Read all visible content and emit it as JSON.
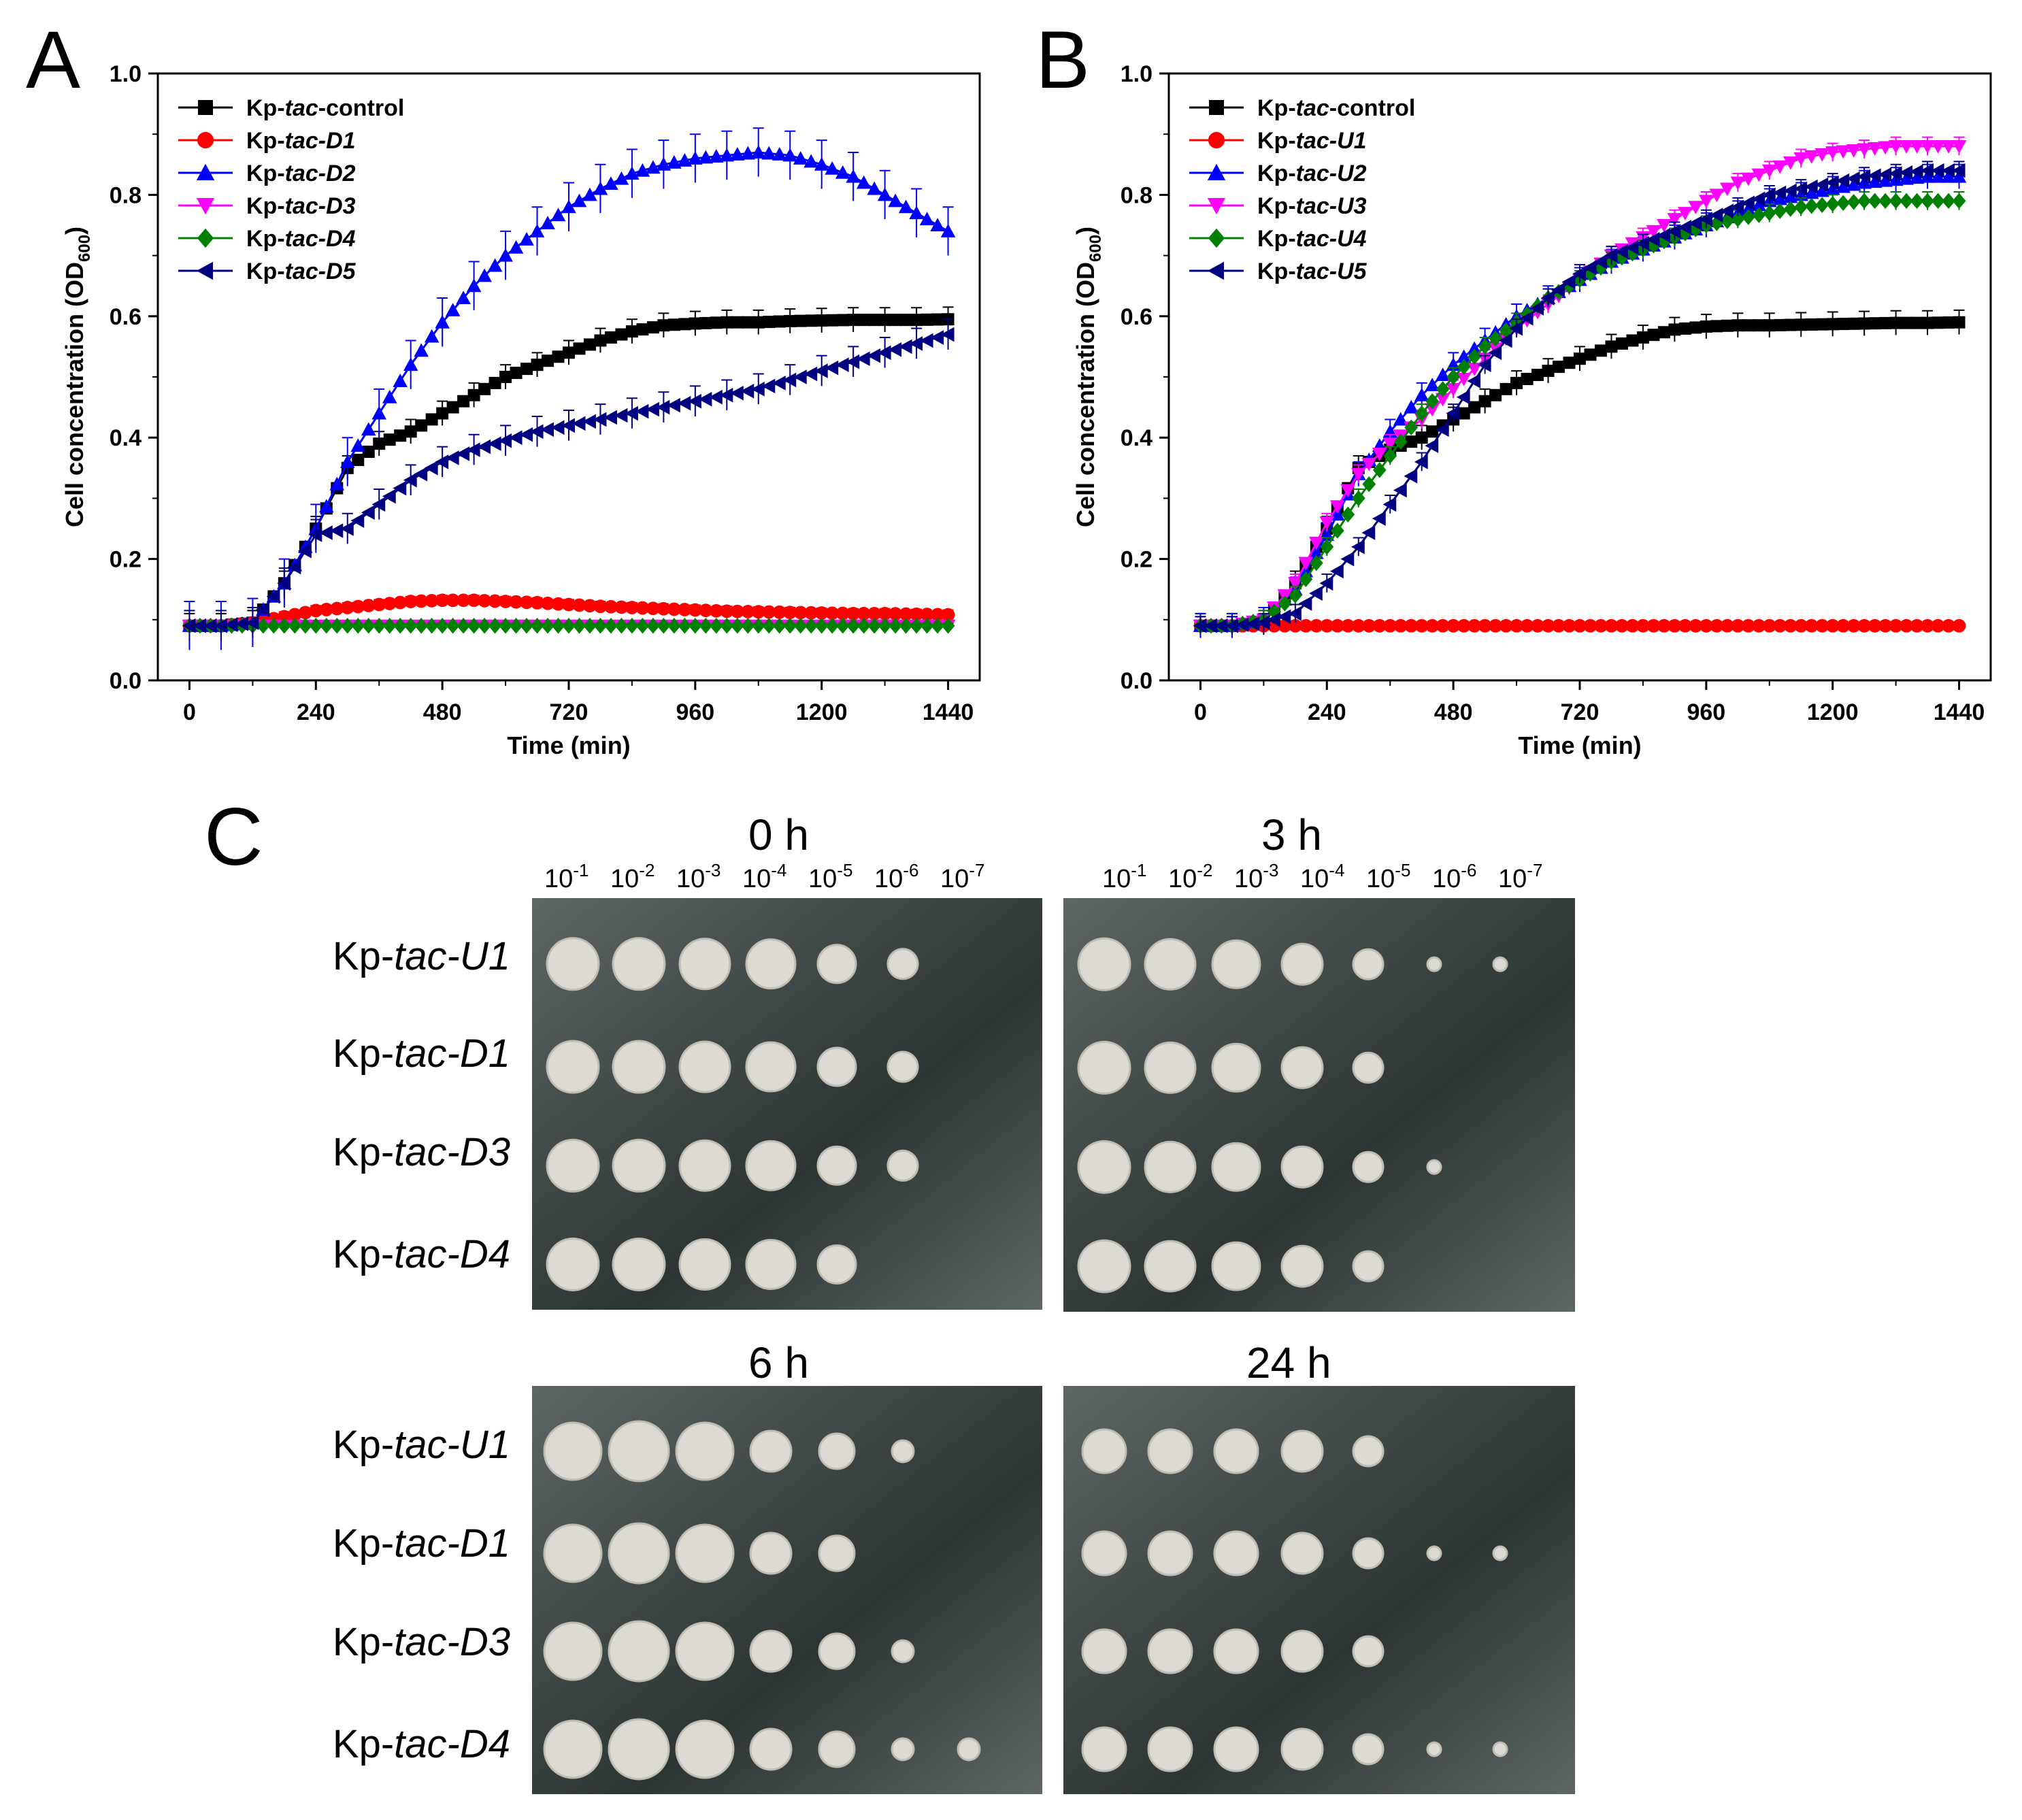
{
  "panels": {
    "a": "A",
    "b": "B",
    "c": "C"
  },
  "chart_data": [
    {
      "type": "line",
      "panel": "A",
      "xlabel": "Time (min)",
      "ylabel": "Cell concentration (OD600)",
      "ylabel_main": "Cell concentration (OD",
      "ylabel_sub": "600",
      "ylabel_close": ")",
      "xlim": [
        -60,
        1500
      ],
      "ylim": [
        0.0,
        1.0
      ],
      "xticks": [
        "0",
        "240",
        "480",
        "720",
        "960",
        "1200",
        "1440"
      ],
      "yticks": [
        "0.0",
        "0.2",
        "0.4",
        "0.6",
        "0.8",
        "1.0"
      ],
      "x": [
        0,
        60,
        120,
        180,
        240,
        300,
        360,
        420,
        480,
        540,
        600,
        660,
        720,
        780,
        840,
        900,
        960,
        1020,
        1080,
        1140,
        1200,
        1260,
        1320,
        1380,
        1440
      ],
      "series": [
        {
          "name": "Kp-tac-control",
          "prefix": "Kp-",
          "italic": "tac",
          "suffix": "-control",
          "color": "#000000",
          "marker": "square",
          "values": [
            0.09,
            0.09,
            0.095,
            0.16,
            0.25,
            0.35,
            0.39,
            0.41,
            0.44,
            0.47,
            0.5,
            0.52,
            0.54,
            0.56,
            0.575,
            0.585,
            0.588,
            0.59,
            0.59,
            0.592,
            0.593,
            0.594,
            0.594,
            0.594,
            0.595
          ],
          "error": 0.02
        },
        {
          "name": "Kp-tac-D1",
          "prefix": "Kp-",
          "italic": "tac",
          "suffix": "-D1",
          "color": "#ff0000",
          "marker": "circle",
          "values": [
            0.09,
            0.09,
            0.095,
            0.105,
            0.115,
            0.12,
            0.125,
            0.13,
            0.132,
            0.132,
            0.13,
            0.128,
            0.125,
            0.122,
            0.12,
            0.118,
            0.116,
            0.114,
            0.113,
            0.112,
            0.111,
            0.11,
            0.11,
            0.109,
            0.108
          ],
          "error": 0.008
        },
        {
          "name": "Kp-tac-D2",
          "prefix": "Kp-",
          "italic": "tac",
          "suffix": "-D2",
          "color": "#0000ff",
          "marker": "triangle-up",
          "values": [
            0.09,
            0.09,
            0.095,
            0.16,
            0.25,
            0.36,
            0.44,
            0.52,
            0.59,
            0.65,
            0.7,
            0.74,
            0.78,
            0.81,
            0.835,
            0.85,
            0.86,
            0.865,
            0.87,
            0.865,
            0.85,
            0.83,
            0.8,
            0.77,
            0.74
          ],
          "error": 0.04
        },
        {
          "name": "Kp-tac-D3",
          "prefix": "Kp-",
          "italic": "tac",
          "suffix": "-D3",
          "color": "#ff00ff",
          "marker": "triangle-down",
          "values": [
            0.09,
            0.09,
            0.09,
            0.09,
            0.09,
            0.09,
            0.09,
            0.09,
            0.09,
            0.09,
            0.09,
            0.09,
            0.09,
            0.09,
            0.09,
            0.09,
            0.09,
            0.09,
            0.09,
            0.09,
            0.09,
            0.09,
            0.09,
            0.09,
            0.09
          ],
          "error": 0.004
        },
        {
          "name": "Kp-tac-D4",
          "prefix": "Kp-",
          "italic": "tac",
          "suffix": "-D4",
          "color": "#008000",
          "marker": "diamond",
          "values": [
            0.09,
            0.09,
            0.09,
            0.09,
            0.09,
            0.09,
            0.09,
            0.09,
            0.09,
            0.09,
            0.09,
            0.09,
            0.09,
            0.09,
            0.09,
            0.09,
            0.09,
            0.09,
            0.09,
            0.09,
            0.09,
            0.09,
            0.09,
            0.09,
            0.09
          ],
          "error": 0.004
        },
        {
          "name": "Kp-tac-D5",
          "prefix": "Kp-",
          "italic": "tac",
          "suffix": "-D5",
          "color": "#000080",
          "marker": "triangle-left",
          "values": [
            0.09,
            0.09,
            0.095,
            0.16,
            0.24,
            0.25,
            0.29,
            0.33,
            0.36,
            0.38,
            0.395,
            0.41,
            0.42,
            0.43,
            0.44,
            0.45,
            0.46,
            0.47,
            0.48,
            0.495,
            0.51,
            0.525,
            0.54,
            0.555,
            0.57
          ],
          "error": 0.025
        }
      ]
    },
    {
      "type": "line",
      "panel": "B",
      "xlabel": "Time (min)",
      "ylabel": "Cell concentration (OD600)",
      "ylabel_main": "Cell concentration (OD",
      "ylabel_sub": "600",
      "ylabel_close": ")",
      "xlim": [
        -60,
        1500
      ],
      "ylim": [
        0.0,
        1.0
      ],
      "xticks": [
        "0",
        "240",
        "480",
        "720",
        "960",
        "1200",
        "1440"
      ],
      "yticks": [
        "0.0",
        "0.2",
        "0.4",
        "0.6",
        "0.8",
        "1.0"
      ],
      "x": [
        0,
        60,
        120,
        180,
        240,
        300,
        360,
        420,
        480,
        540,
        600,
        660,
        720,
        780,
        840,
        900,
        960,
        1020,
        1080,
        1140,
        1200,
        1260,
        1320,
        1380,
        1440
      ],
      "series": [
        {
          "name": "Kp-tac-control",
          "prefix": "Kp-",
          "italic": "tac",
          "suffix": "-control",
          "color": "#000000",
          "marker": "square",
          "values": [
            0.09,
            0.09,
            0.095,
            0.16,
            0.25,
            0.35,
            0.38,
            0.4,
            0.43,
            0.46,
            0.49,
            0.51,
            0.53,
            0.55,
            0.565,
            0.578,
            0.583,
            0.585,
            0.585,
            0.586,
            0.587,
            0.588,
            0.589,
            0.589,
            0.59
          ],
          "error": 0.02
        },
        {
          "name": "Kp-tac-U1",
          "prefix": "Kp-",
          "italic": "tac",
          "suffix": "-U1",
          "color": "#ff0000",
          "marker": "circle",
          "values": [
            0.09,
            0.09,
            0.09,
            0.09,
            0.09,
            0.09,
            0.09,
            0.09,
            0.09,
            0.09,
            0.09,
            0.09,
            0.09,
            0.09,
            0.09,
            0.09,
            0.09,
            0.09,
            0.09,
            0.09,
            0.09,
            0.09,
            0.09,
            0.09,
            0.09
          ],
          "error": 0.003
        },
        {
          "name": "Kp-tac-U2",
          "prefix": "Kp-",
          "italic": "tac",
          "suffix": "-U2",
          "color": "#0000ff",
          "marker": "triangle-up",
          "values": [
            0.09,
            0.09,
            0.1,
            0.15,
            0.24,
            0.34,
            0.41,
            0.47,
            0.52,
            0.56,
            0.6,
            0.63,
            0.66,
            0.69,
            0.71,
            0.73,
            0.75,
            0.77,
            0.79,
            0.8,
            0.81,
            0.82,
            0.825,
            0.83,
            0.83
          ],
          "error": 0.02
        },
        {
          "name": "Kp-tac-U3",
          "prefix": "Kp-",
          "italic": "tac",
          "suffix": "-U3",
          "color": "#ff00ff",
          "marker": "triangle-down",
          "values": [
            0.09,
            0.09,
            0.1,
            0.16,
            0.26,
            0.34,
            0.39,
            0.43,
            0.48,
            0.53,
            0.58,
            0.62,
            0.66,
            0.7,
            0.73,
            0.76,
            0.79,
            0.82,
            0.84,
            0.86,
            0.87,
            0.875,
            0.88,
            0.88,
            0.88
          ],
          "error": 0.015
        },
        {
          "name": "Kp-tac-U4",
          "prefix": "Kp-",
          "italic": "tac",
          "suffix": "-U4",
          "color": "#008000",
          "marker": "diamond",
          "values": [
            0.09,
            0.09,
            0.1,
            0.14,
            0.22,
            0.3,
            0.37,
            0.44,
            0.5,
            0.55,
            0.59,
            0.63,
            0.66,
            0.69,
            0.71,
            0.73,
            0.75,
            0.76,
            0.77,
            0.78,
            0.785,
            0.79,
            0.79,
            0.79,
            0.79
          ],
          "error": 0.015
        },
        {
          "name": "Kp-tac-U5",
          "prefix": "Kp-",
          "italic": "tac",
          "suffix": "-U5",
          "color": "#000080",
          "marker": "triangle-left",
          "values": [
            0.09,
            0.09,
            0.095,
            0.11,
            0.16,
            0.22,
            0.29,
            0.36,
            0.44,
            0.52,
            0.58,
            0.63,
            0.67,
            0.7,
            0.72,
            0.74,
            0.76,
            0.78,
            0.8,
            0.81,
            0.82,
            0.83,
            0.835,
            0.84,
            0.84
          ],
          "error": 0.015
        }
      ]
    }
  ],
  "spot_assay": {
    "dilutions": [
      {
        "base": "10",
        "exp": "-1"
      },
      {
        "base": "10",
        "exp": "-2"
      },
      {
        "base": "10",
        "exp": "-3"
      },
      {
        "base": "10",
        "exp": "-4"
      },
      {
        "base": "10",
        "exp": "-5"
      },
      {
        "base": "10",
        "exp": "-6"
      },
      {
        "base": "10",
        "exp": "-7"
      }
    ],
    "strains": [
      {
        "prefix": "Kp-",
        "italic": "tac-U1"
      },
      {
        "prefix": "Kp-",
        "italic": "tac-D1"
      },
      {
        "prefix": "Kp-",
        "italic": "tac-D3"
      },
      {
        "prefix": "Kp-",
        "italic": "tac-D4"
      }
    ],
    "timepoints": [
      "0 h",
      "3 h",
      "6 h",
      "24 h"
    ],
    "colors": {
      "agar_dark": "#2c3533",
      "agar_light": "#5d6664",
      "colony": "#dcdad2",
      "colony_edge": "#bfbcb2"
    }
  }
}
